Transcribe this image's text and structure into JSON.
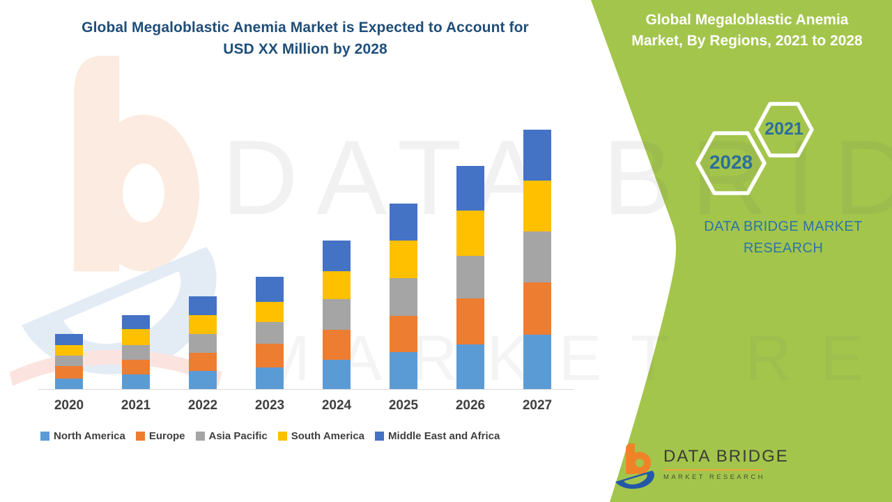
{
  "header": {
    "title_line1": "Global Megaloblastic Anemia Market is Expected to Account for",
    "title_line2": "USD XX Million by 2028"
  },
  "side_panel": {
    "title_line1": "Global Megaloblastic Anemia",
    "title_line2": "Market, By Regions, 2021 to 2028",
    "hexagons": [
      {
        "label": "2028"
      },
      {
        "label": "2021"
      }
    ],
    "brand_text": "DATA BRIDGE MARKET RESEARCH",
    "accent_green": "#A3C54C",
    "year_text_color": "#2C6E9E"
  },
  "watermark": {
    "line1": "DATA BRIDGE",
    "line2": "MARKET RESEARCH"
  },
  "footer": {
    "brand": "DATA BRIDGE",
    "subtext": "MARKET  RESEARCH"
  },
  "chart_data": {
    "type": "bar",
    "stacked": true,
    "title": "Global Megaloblastic Anemia Market is Expected to Account for USD XX Million by 2028",
    "xlabel": "",
    "ylabel": "",
    "units": "relative index (no y-axis values shown, chart labeled USD XX Million)",
    "categories": [
      "2020",
      "2021",
      "2022",
      "2023",
      "2024",
      "2025",
      "2026",
      "2027"
    ],
    "series": [
      {
        "name": "North America",
        "color": "#5B9BD5",
        "values": [
          15,
          21,
          26,
          31,
          42,
          53,
          64,
          78
        ]
      },
      {
        "name": "Europe",
        "color": "#ED7D31",
        "values": [
          18,
          21,
          26,
          34,
          43,
          52,
          66,
          75
        ]
      },
      {
        "name": "Asia Pacific",
        "color": "#A5A5A5",
        "values": [
          15,
          21,
          27,
          31,
          44,
          54,
          61,
          73
        ]
      },
      {
        "name": "South America",
        "color": "#FFC000",
        "values": [
          15,
          23,
          27,
          29,
          40,
          54,
          65,
          73
        ]
      },
      {
        "name": "Middle East and Africa",
        "color": "#4472C4",
        "values": [
          16,
          20,
          27,
          36,
          44,
          53,
          64,
          73
        ]
      }
    ],
    "stack_order": "bottom-to-top",
    "totals": [
      79,
      106,
      133,
      161,
      213,
      266,
      320,
      372
    ],
    "ylim": [
      0,
      400
    ],
    "gridlines": false,
    "y_axis_visible": false,
    "legend_position": "bottom"
  }
}
